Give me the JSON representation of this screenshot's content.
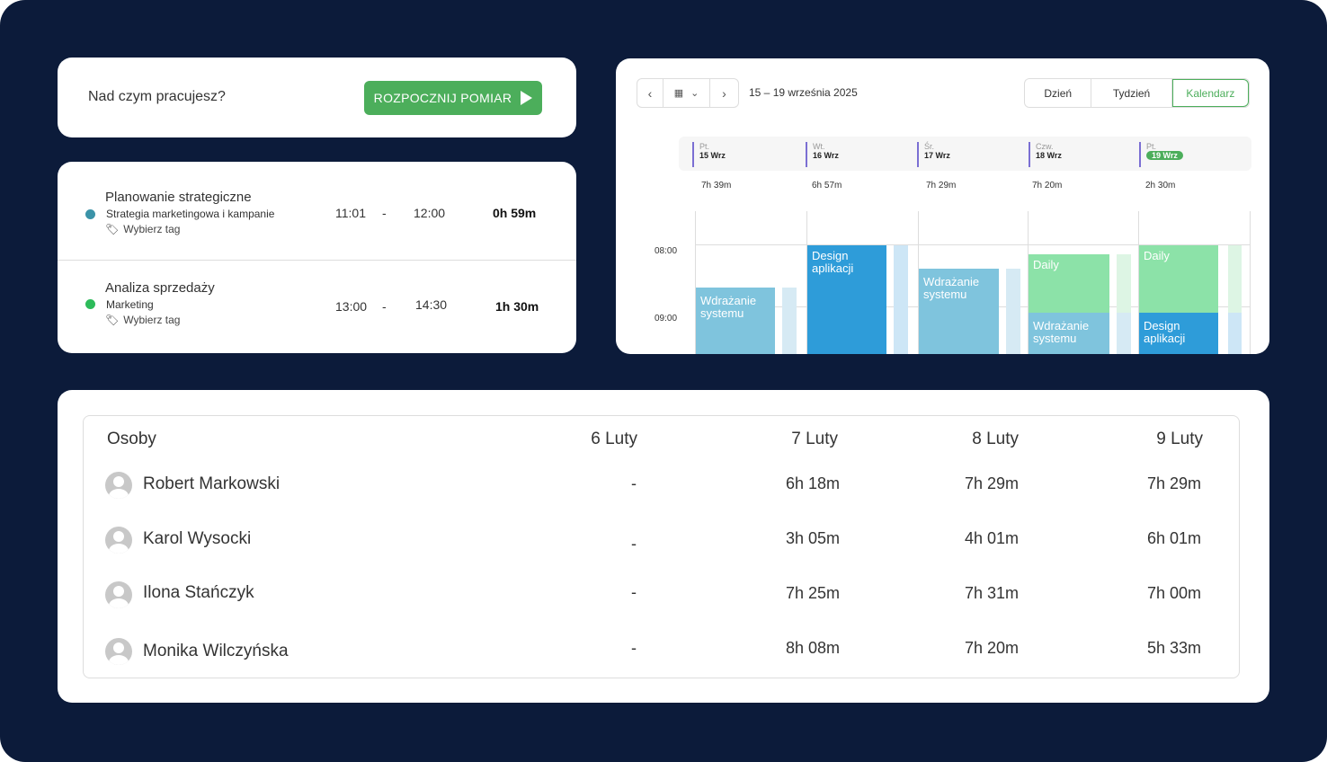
{
  "tracker": {
    "prompt": "Nad czym pracujesz?",
    "start_label": "ROZPOCZNIJ POMIAR"
  },
  "entries": [
    {
      "title": "Planowanie strategiczne",
      "project": "Strategia marketingowa i kampanie",
      "tag": "Wybierz tag",
      "start": "11:01",
      "sep": "-",
      "end": "12:00",
      "duration": "0h 59m",
      "color": "#3b93a8"
    },
    {
      "title": "Analiza sprzedaży",
      "project": "Marketing",
      "tag": "Wybierz tag",
      "start": "13:00",
      "sep": "-",
      "end": "14:30",
      "duration": "1h 30m",
      "color": "#2dbb5a"
    }
  ],
  "calendar": {
    "range": "15 – 19 września 2025",
    "views": [
      "Dzień",
      "Tydzień",
      "Kalendarz"
    ],
    "active_view": "Kalendarz",
    "days": [
      {
        "dow": "Pt.",
        "date": "15 Wrz",
        "total": "7h 39m"
      },
      {
        "dow": "Wt.",
        "date": "16 Wrz",
        "total": "6h 57m"
      },
      {
        "dow": "Śr.",
        "date": "17 Wrz",
        "total": "7h 29m"
      },
      {
        "dow": "Czw.",
        "date": "18 Wrz",
        "total": "7h 20m"
      },
      {
        "dow": "Pt.",
        "date": "19 Wrz",
        "total": "2h 30m",
        "today": true
      }
    ],
    "hours": [
      "08:00",
      "09:00"
    ],
    "events": [
      "Wdrażanie systemu",
      "Design aplikacji",
      "Wdrażanie systemu",
      "Daily",
      "Wdrażanie systemu",
      "Daily",
      "Design aplikacji"
    ]
  },
  "table": {
    "headers": [
      "Osoby",
      "6 Luty",
      "7 Luty",
      "8 Luty",
      "9 Luty"
    ],
    "rows": [
      {
        "name": "Robert Markowski",
        "values": [
          "-",
          "6h 18m",
          "7h 29m",
          "7h 29m"
        ]
      },
      {
        "name": "Karol Wysocki",
        "values": [
          "-",
          "3h 05m",
          "4h 01m",
          "6h 01m"
        ]
      },
      {
        "name": "Ilona Stańczyk",
        "values": [
          "-",
          "7h 25m",
          "7h 31m",
          "7h 00m"
        ]
      },
      {
        "name": "Monika Wilczyńska",
        "values": [
          "-",
          "8h 08m",
          "7h 20m",
          "5h 33m"
        ]
      }
    ]
  }
}
